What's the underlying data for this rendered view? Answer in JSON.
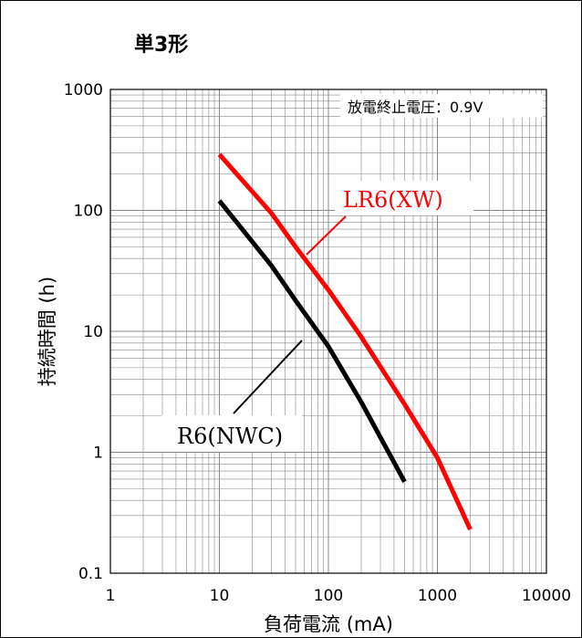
{
  "chart_data": {
    "type": "line",
    "title": "単3形",
    "xlabel": "負荷電流 (mA)",
    "ylabel": "持続時間 (h)",
    "xscale": "log",
    "yscale": "log",
    "xlim": [
      1,
      10000
    ],
    "ylim": [
      0.1,
      1000
    ],
    "xticks": [
      "1",
      "10",
      "100",
      "1000",
      "10000"
    ],
    "yticks": [
      "0.1",
      "1",
      "10",
      "100",
      "1000"
    ],
    "grid": true,
    "annotation": "放電終止電圧：0.9V",
    "series": [
      {
        "name": "LR6(XW)",
        "color": "#ff0000",
        "x": [
          10,
          30,
          50,
          100,
          200,
          500,
          1000,
          2000
        ],
        "y": [
          290,
          95,
          50,
          22,
          9,
          2.5,
          0.9,
          0.23
        ]
      },
      {
        "name": "R6(NWC)",
        "color": "#000000",
        "x": [
          10,
          30,
          50,
          100,
          200,
          500
        ],
        "y": [
          120,
          35,
          18,
          7.5,
          2.6,
          0.57
        ]
      }
    ]
  }
}
